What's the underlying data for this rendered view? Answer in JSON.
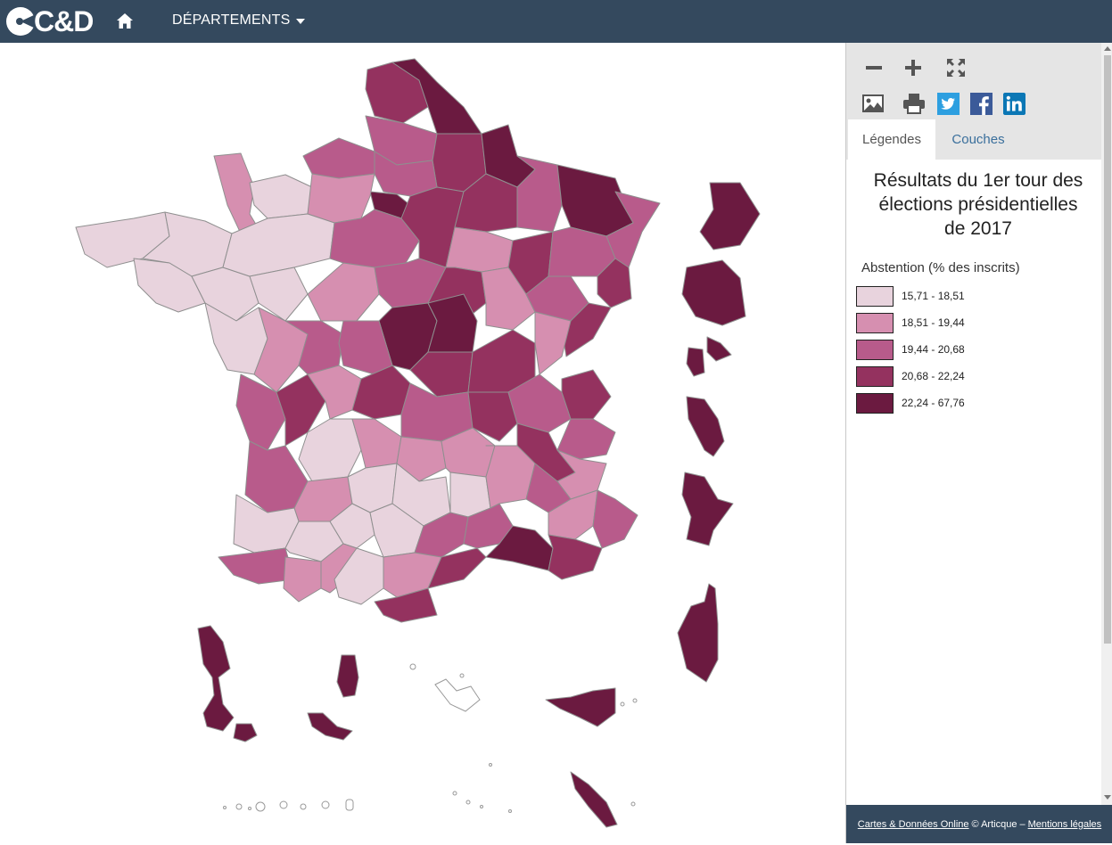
{
  "header": {
    "logo_text": "C&D",
    "menu_label": "DÉPARTEMENTS"
  },
  "tools": {
    "icons": [
      "zoom-out-icon",
      "zoom-in-icon",
      "fullscreen-icon",
      "image-export-icon",
      "print-icon",
      "twitter-icon",
      "facebook-icon",
      "linkedin-icon"
    ]
  },
  "tabs": {
    "legends": "Légendes",
    "layers": "Couches"
  },
  "legend": {
    "title_line1": "Résultats du 1er tour des",
    "title_line2": "élections présidentielles",
    "title_line3": "de 2017",
    "subtitle": "Abstention (% des inscrits)",
    "classes": [
      {
        "label": "15,71 - 18,51",
        "color": "#e8d3dd"
      },
      {
        "label": "18,51 - 19,44",
        "color": "#d68fb0"
      },
      {
        "label": "19,44 - 20,68",
        "color": "#b85b8b"
      },
      {
        "label": "20,68 - 22,24",
        "color": "#94325f"
      },
      {
        "label": "22,24 - 67,76",
        "color": "#6b1a40"
      }
    ]
  },
  "footer": {
    "link1": "Cartes & Données Online",
    "middle": "© Articque –",
    "link2": "Mentions légales"
  }
}
